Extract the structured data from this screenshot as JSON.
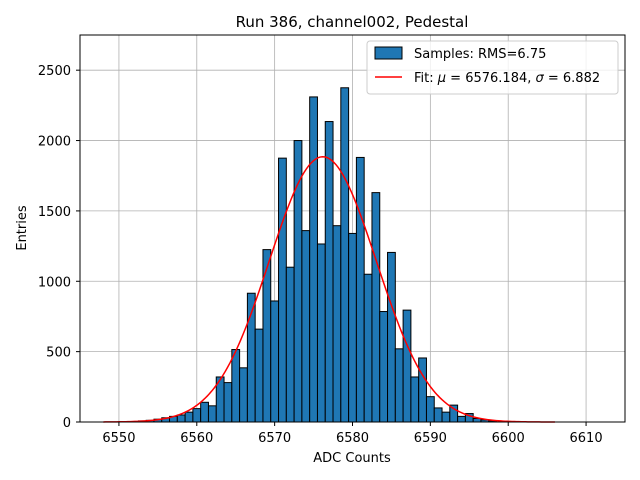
{
  "chart_data": {
    "type": "bar",
    "title": "Run 386, channel002, Pedestal",
    "xlabel": "ADC Counts",
    "ylabel": "Entries",
    "xlim": [
      6545,
      6615
    ],
    "ylim": [
      0,
      2750
    ],
    "xticks": [
      6550,
      6560,
      6570,
      6580,
      6590,
      6600,
      6610
    ],
    "yticks": [
      0,
      500,
      1000,
      1500,
      2000,
      2500
    ],
    "grid": true,
    "legend_position": "top-right",
    "colors": {
      "bars": "#1f77b4",
      "bar_edge": "#000000",
      "fit": "#ff0000",
      "grid": "#b0b0b0"
    },
    "histogram": {
      "name": "Samples: RMS=6.75",
      "bin_width": 1,
      "x": [
        6553,
        6554,
        6555,
        6556,
        6557,
        6558,
        6559,
        6560,
        6561,
        6562,
        6563,
        6564,
        6565,
        6566,
        6567,
        6568,
        6569,
        6570,
        6571,
        6572,
        6573,
        6574,
        6575,
        6576,
        6577,
        6578,
        6579,
        6580,
        6581,
        6582,
        6583,
        6584,
        6585,
        6586,
        6587,
        6588,
        6589,
        6590,
        6591,
        6592,
        6593,
        6594,
        6595,
        6596,
        6597,
        6598
      ],
      "values": [
        8,
        12,
        20,
        30,
        40,
        50,
        70,
        95,
        140,
        115,
        320,
        280,
        515,
        385,
        915,
        660,
        1225,
        860,
        1875,
        1100,
        2000,
        1360,
        2310,
        1265,
        2135,
        1395,
        2375,
        1340,
        1880,
        1050,
        1630,
        785,
        1205,
        520,
        795,
        320,
        455,
        180,
        100,
        70,
        120,
        40,
        60,
        25,
        15,
        8
      ]
    },
    "fit": {
      "name": "Fit: μ = 6576.184, σ = 6.882",
      "label_prefix": "Fit: ",
      "mu_symbol": "μ",
      "mu_text": " = 6576.184, ",
      "sigma_symbol": "σ",
      "sigma_text": " = 6.882",
      "mu": 6576.184,
      "sigma": 6.882,
      "peak": 1885,
      "x_range": [
        6548,
        6606
      ]
    }
  }
}
